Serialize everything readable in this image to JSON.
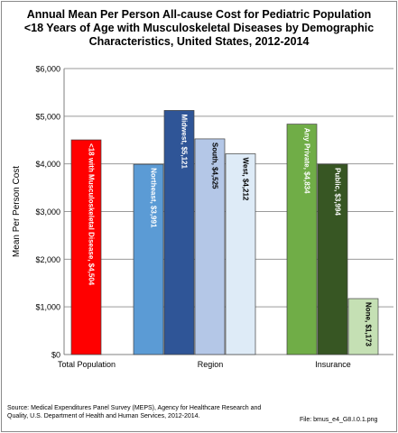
{
  "chart_data": {
    "type": "bar",
    "title_lines": [
      "Annual Mean Per Person All-cause Cost for Pediatric Population",
      "<18  Years of Age with Musculoskeletal Diseases by Demographic",
      "Characteristics, United States, 2012-2014"
    ],
    "ylabel": "Mean Per Person Cost",
    "ylim": [
      0,
      6000
    ],
    "y_ticks": [
      "$0",
      "$1,000",
      "$2,000",
      "$3,000",
      "$4,000",
      "$5,000",
      "$6,000"
    ],
    "grid": true,
    "groups": [
      "Total Population",
      "Region",
      "Insurance"
    ],
    "bars": [
      {
        "group": "Total Population",
        "label": "<18 with Musculoskeletal Disease, $4,504",
        "value": 4504,
        "color": "#ff0000"
      },
      {
        "group": "Region",
        "label": "Northeast, $3,991",
        "value": 3991,
        "color": "#5b9bd5"
      },
      {
        "group": "Region",
        "label": "Midwest, $5,121",
        "value": 5121,
        "color": "#2f5597"
      },
      {
        "group": "Region",
        "label": "South, $4,525",
        "value": 4525,
        "color": "#b4c7e7"
      },
      {
        "group": "Region",
        "label": "West, $4,212",
        "value": 4212,
        "color": "#deebf7"
      },
      {
        "group": "Insurance",
        "label": "Any Private, $4,834",
        "value": 4834,
        "color": "#70ad47"
      },
      {
        "group": "Insurance",
        "label": "Public, $3,994",
        "value": 3994,
        "color": "#375623"
      },
      {
        "group": "Insurance",
        "label": "None, $1,173",
        "value": 1173,
        "color": "#c5e0b4"
      }
    ]
  },
  "footer": {
    "source": "Source: Medical Expenditures Panel Survey (MEPS), Agency for Healthcare Research and Quality, U.S. Department of Health and Human Services, 2012-2014.",
    "file": "File: bmus_e4_G8.I.0.1.png"
  }
}
